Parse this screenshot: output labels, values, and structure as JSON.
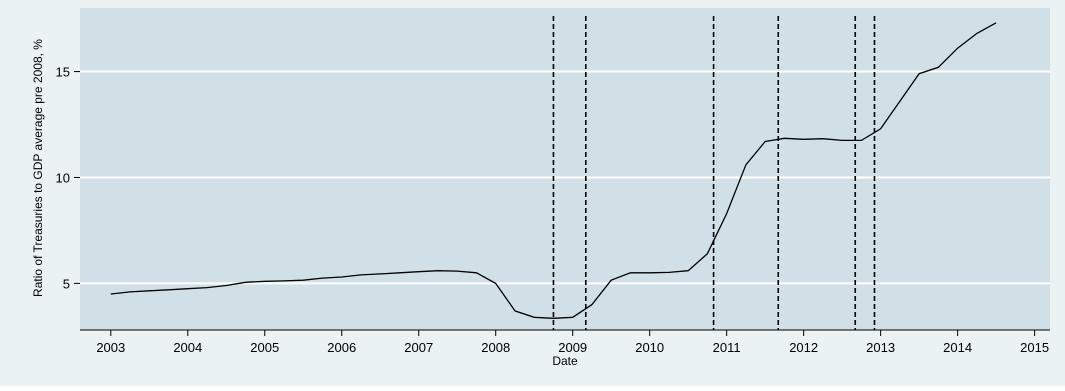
{
  "chart_data": {
    "type": "line",
    "title": "",
    "xlabel": "Date",
    "ylabel": "Ratio of Treasuries to GDP average pre 2008, %",
    "xlim": [
      2002.6,
      2015.2
    ],
    "ylim": [
      2.8,
      18.0
    ],
    "grid": "horizontal",
    "x_ticks": [
      2003,
      2004,
      2005,
      2006,
      2007,
      2008,
      2009,
      2010,
      2011,
      2012,
      2013,
      2014,
      2015
    ],
    "x_tick_labels": [
      "2003",
      "2004",
      "2005",
      "2006",
      "2007",
      "2008",
      "2009",
      "2010",
      "2011",
      "2012",
      "2013",
      "2014",
      "2015"
    ],
    "y_ticks": [
      5,
      10,
      15
    ],
    "y_tick_labels": [
      "5",
      "10",
      "15"
    ],
    "vlines": [
      2008.75,
      2009.17,
      2010.83,
      2011.67,
      2012.67,
      2012.92
    ],
    "series": [
      {
        "x": [
          2003.0,
          2003.25,
          2003.5,
          2003.75,
          2004.0,
          2004.25,
          2004.5,
          2004.75,
          2005.0,
          2005.25,
          2005.5,
          2005.75,
          2006.0,
          2006.25,
          2006.5,
          2006.75,
          2007.0,
          2007.25,
          2007.5,
          2007.75,
          2008.0,
          2008.25,
          2008.5,
          2008.75,
          2009.0,
          2009.25,
          2009.5,
          2009.75,
          2010.0,
          2010.25,
          2010.5,
          2010.75,
          2011.0,
          2011.25,
          2011.5,
          2011.75,
          2012.0,
          2012.25,
          2012.5,
          2012.75,
          2013.0,
          2013.25,
          2013.5,
          2013.75,
          2014.0,
          2014.25,
          2014.5
        ],
        "values": [
          4.5,
          4.6,
          4.65,
          4.7,
          4.75,
          4.8,
          4.9,
          5.05,
          5.1,
          5.12,
          5.15,
          5.25,
          5.3,
          5.4,
          5.45,
          5.5,
          5.55,
          5.6,
          5.58,
          5.5,
          5.0,
          3.7,
          3.4,
          3.35,
          3.4,
          4.0,
          5.15,
          5.5,
          5.5,
          5.52,
          5.6,
          6.4,
          8.3,
          10.6,
          11.7,
          11.85,
          11.8,
          11.83,
          11.75,
          11.75,
          12.3,
          13.6,
          14.9,
          15.2,
          16.1,
          16.8,
          17.3
        ]
      }
    ]
  }
}
